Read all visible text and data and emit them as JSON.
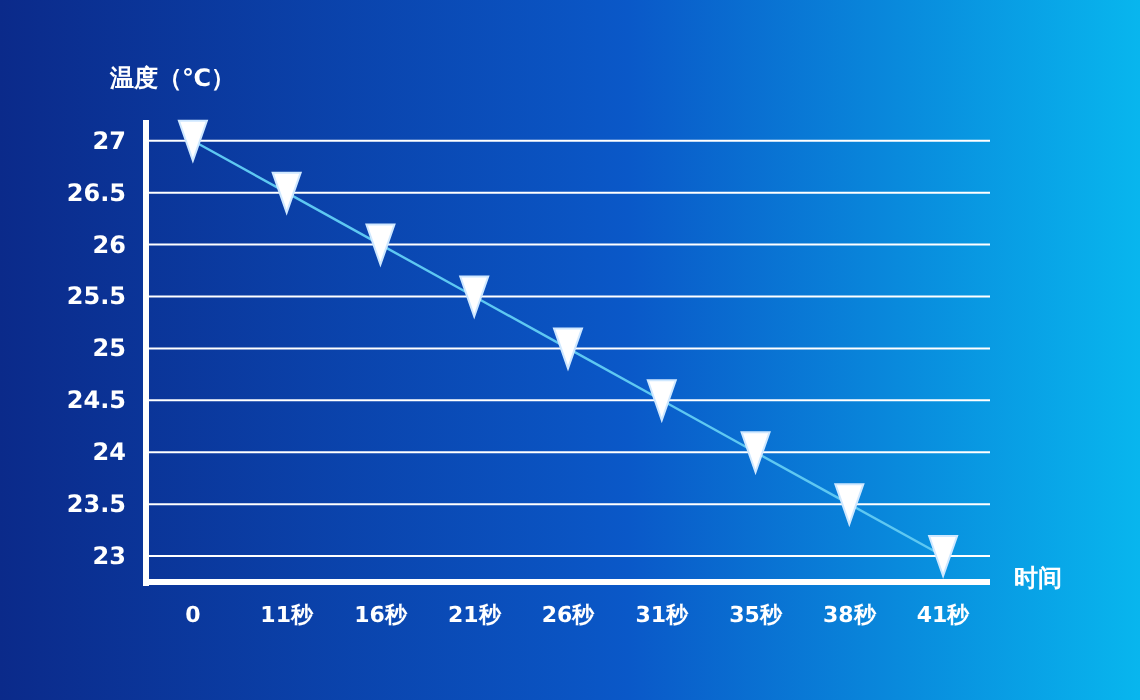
{
  "chart_data": {
    "type": "line",
    "ylabel": "温度（℃）",
    "xlabel": "时间",
    "categories": [
      "0",
      "11秒",
      "16秒",
      "21秒",
      "26秒",
      "31秒",
      "35秒",
      "38秒",
      "41秒"
    ],
    "series": [
      {
        "color": "#5ec8f2",
        "values": [
          27,
          26.5,
          26,
          25.5,
          25,
          24.5,
          24,
          23.5,
          23
        ]
      }
    ],
    "ylim": [
      22.75,
      27.2
    ],
    "yticks": [
      23,
      23.5,
      24,
      24.5,
      25,
      25.5,
      26,
      26.5,
      27
    ],
    "grid": "y",
    "marker": "triangle",
    "line_style": "solid"
  }
}
